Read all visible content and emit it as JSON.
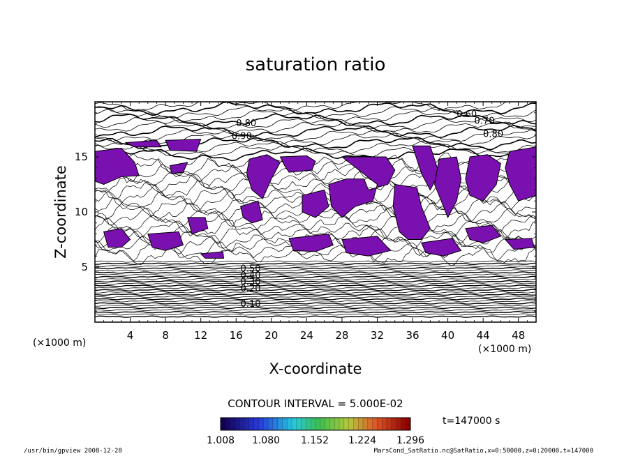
{
  "chart_data": {
    "type": "contour",
    "title": "saturation ratio",
    "xlabel": "X-coordinate",
    "ylabel": "Z-coordinate",
    "x_unit": "(×1000 m)",
    "z_unit": "(×1000 m)",
    "xlim": [
      0,
      50
    ],
    "ylim": [
      0,
      20
    ],
    "x_ticks": [
      4,
      8,
      12,
      16,
      20,
      24,
      28,
      32,
      36,
      40,
      44,
      48
    ],
    "y_ticks": [
      5,
      10,
      15
    ],
    "contour_interval_text": "CONTOUR INTERVAL = 5.000E-02",
    "contour_labels": [
      "0.10",
      "0.20",
      "0.30",
      "0.40",
      "0.50",
      "0.60",
      "0.70",
      "0.80",
      "0.90"
    ],
    "shaded_threshold": 1.0,
    "shade_color": "#7a10b0",
    "colorbar": {
      "ticks": [
        "1.008",
        "1.080",
        "1.152",
        "1.224",
        "1.296"
      ],
      "range": [
        1.008,
        1.296
      ]
    },
    "time_label": "t=147000 s",
    "grid": false
  },
  "footer": {
    "left": "/usr/bin/gpview  2008-12-28",
    "right": "MarsCond_SatRatio.nc@SatRatio,x=0:50000,z=0:20000,t=147000"
  }
}
